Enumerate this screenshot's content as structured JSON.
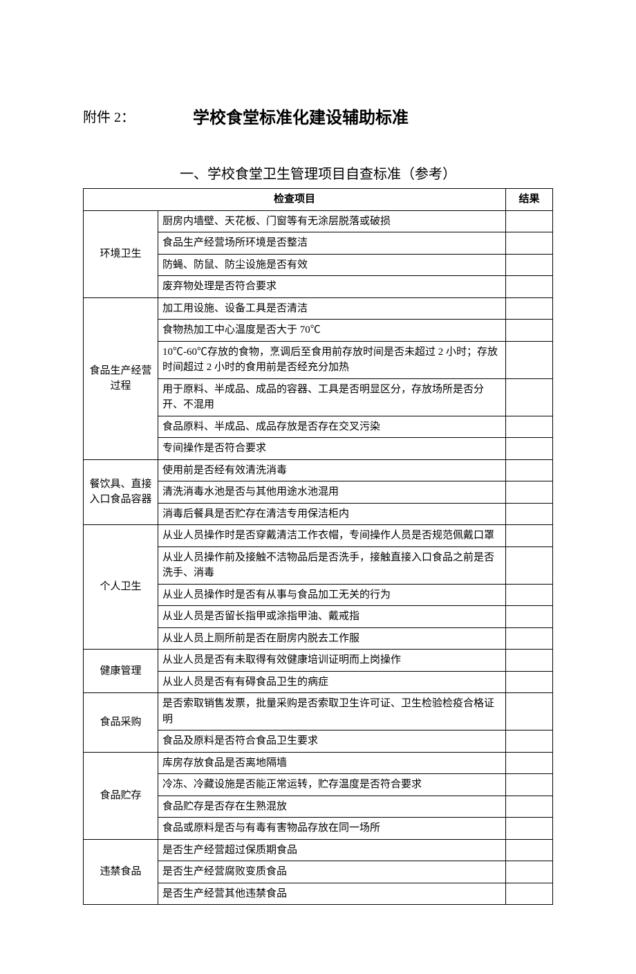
{
  "attachment_label": "附件 2：",
  "main_title": "学校食堂标准化建设辅助标准",
  "section_title": "一、学校食堂卫生管理项目自查标准（参考）",
  "header_item": "检查项目",
  "header_result": "结果",
  "categories": [
    {
      "name": "环境卫生",
      "items": [
        "厨房内墙壁、天花板、门窗等有无涂层脱落或破损",
        "食品生产经营场所环境是否整洁",
        "防蝇、防鼠、防尘设施是否有效",
        "废弃物处理是否符合要求"
      ]
    },
    {
      "name": "食品生产经营过程",
      "items": [
        "加工用设施、设备工具是否清洁",
        "食物热加工中心温度是否大于 70℃",
        "10℃-60℃存放的食物，烹调后至食用前存放时间是否未超过 2 小时；存放时间超过 2 小时的食用前是否经充分加热",
        "用于原料、半成品、成品的容器、工具是否明显区分，存放场所是否分开、不混用",
        "食品原料、半成品、成品存放是否存在交叉污染",
        "专间操作是否符合要求"
      ]
    },
    {
      "name": "餐饮具、直接入口食品容器",
      "items": [
        "使用前是否经有效清洗消毒",
        "清洗消毒水池是否与其他用途水池混用",
        "消毒后餐具是否贮存在清洁专用保洁柜内"
      ]
    },
    {
      "name": "个人卫生",
      "items": [
        "从业人员操作时是否穿戴清洁工作衣帽，专间操作人员是否规范佩戴口罩",
        "从业人员操作前及接触不洁物品后是否洗手，接触直接入口食品之前是否洗手、消毒",
        "从业人员操作时是否有从事与食品加工无关的行为",
        "从业人员是否留长指甲或涂指甲油、戴戒指",
        "从业人员上厕所前是否在厨房内脱去工作服"
      ]
    },
    {
      "name": "健康管理",
      "items": [
        "从业人员是否有未取得有效健康培训证明而上岗操作",
        "从业人员是否有有碍食品卫生的病症"
      ]
    },
    {
      "name": "食品采购",
      "items": [
        "是否索取销售发票，批量采购是否索取卫生许可证、卫生检验检疫合格证明",
        "食品及原料是否符合食品卫生要求"
      ]
    },
    {
      "name": "食品贮存",
      "items": [
        "库房存放食品是否离地隔墙",
        "冷冻、冷藏设施是否能正常运转，贮存温度是否符合要求",
        "食品贮存是否存在生熟混放",
        "食品或原料是否与有毒有害物品存放在同一场所"
      ]
    },
    {
      "name": "违禁食品",
      "items": [
        "是否生产经营超过保质期食品",
        "是否生产经营腐败变质食品",
        "是否生产经营其他违禁食品"
      ]
    }
  ]
}
